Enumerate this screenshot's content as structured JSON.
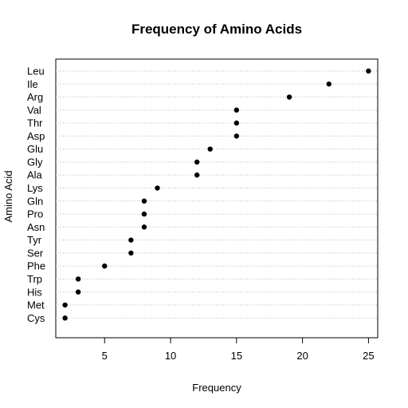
{
  "chart_data": {
    "type": "scatter",
    "subtype": "dotchart",
    "title": "Frequency of Amino Acids",
    "xlabel": "Frequency",
    "ylabel": "Amino Acid",
    "xlim": [
      1.3,
      25.7
    ],
    "xticks": [
      5,
      10,
      15,
      20,
      25
    ],
    "grid": "dotted horizontal lines per category",
    "point_color": "#000000",
    "grid_color": "#bebebe",
    "categories": [
      "Leu",
      "Ile",
      "Arg",
      "Val",
      "Thr",
      "Asp",
      "Glu",
      "Gly",
      "Ala",
      "Lys",
      "Gln",
      "Pro",
      "Asn",
      "Tyr",
      "Ser",
      "Phe",
      "Trp",
      "His",
      "Met",
      "Cys"
    ],
    "values": [
      25,
      22,
      19,
      15,
      15,
      15,
      13,
      12,
      12,
      9,
      8,
      8,
      8,
      7,
      7,
      5,
      3,
      3,
      2,
      2
    ]
  }
}
